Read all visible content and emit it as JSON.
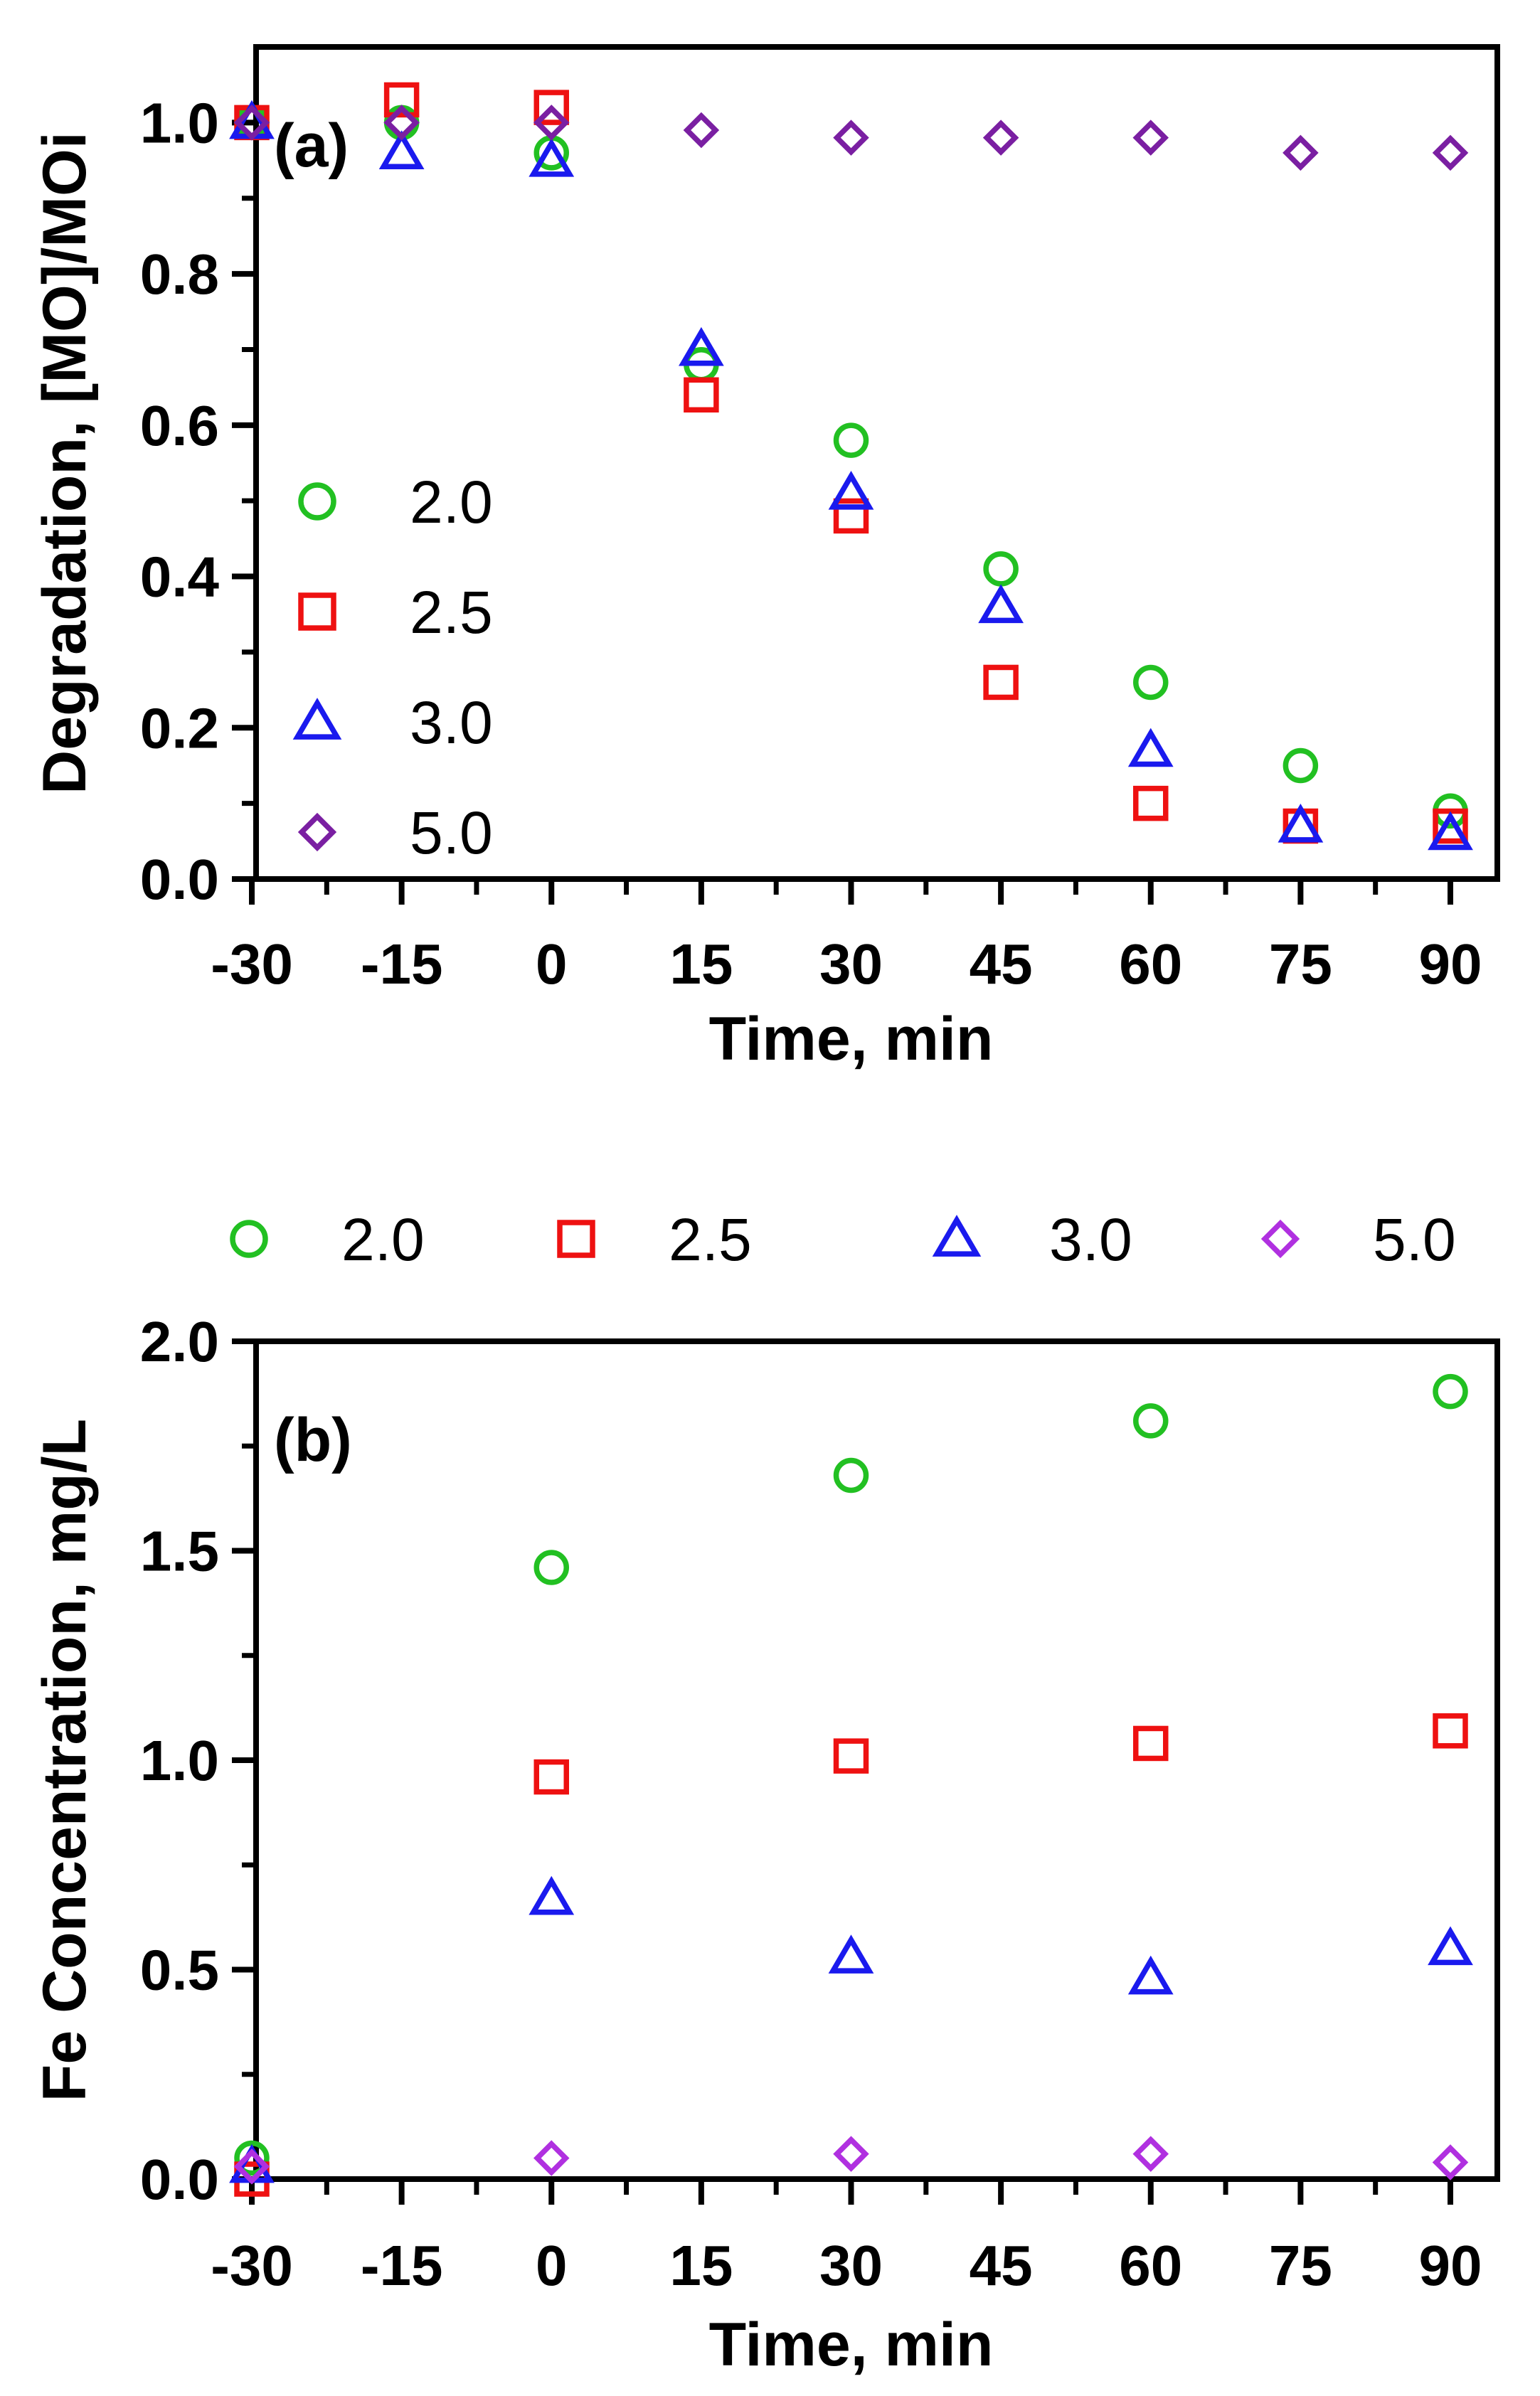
{
  "chart_data": [
    {
      "type": "scatter",
      "panel_label": "(a)",
      "title": "",
      "xlabel": "Time, min",
      "ylabel": "Degradation, [MO]/MOi",
      "xlim": [
        -30,
        90
      ],
      "ylim": [
        0,
        1.1
      ],
      "x_ticks": [
        -30,
        -15,
        0,
        15,
        30,
        45,
        60,
        75,
        90
      ],
      "x_tick_labels": [
        "-30",
        "-15",
        "0",
        "15",
        "30",
        "45",
        "60",
        "75",
        "90"
      ],
      "y_ticks": [
        0,
        0.2,
        0.4,
        0.6,
        0.8,
        1.0
      ],
      "y_tick_labels": [
        "0.0",
        "0.2",
        "0.4",
        "0.6",
        "0.8",
        "1.0"
      ],
      "legend": "inside-left",
      "grid": false,
      "series": [
        {
          "name": "2.0",
          "marker": "circle",
          "color": "#22c022",
          "x": [
            -30,
            -15,
            0,
            15,
            30,
            45,
            60,
            75,
            90
          ],
          "y": [
            1.0,
            1.0,
            0.96,
            0.68,
            0.58,
            0.41,
            0.26,
            0.15,
            0.09
          ]
        },
        {
          "name": "2.5",
          "marker": "square",
          "color": "#ee1111",
          "x": [
            -30,
            -15,
            0,
            15,
            30,
            45,
            60,
            75,
            90
          ],
          "y": [
            1.0,
            1.03,
            1.02,
            0.64,
            0.48,
            0.26,
            0.1,
            0.07,
            0.07
          ]
        },
        {
          "name": "3.0",
          "marker": "triangle",
          "color": "#1a1aee",
          "x": [
            -30,
            -15,
            0,
            15,
            30,
            45,
            60,
            75,
            90
          ],
          "y": [
            1.0,
            0.96,
            0.95,
            0.7,
            0.51,
            0.36,
            0.17,
            0.07,
            0.06
          ]
        },
        {
          "name": "5.0",
          "marker": "diamond",
          "color": "#7a1fa2",
          "x": [
            -30,
            -15,
            0,
            15,
            30,
            45,
            60,
            75,
            90
          ],
          "y": [
            1.0,
            1.0,
            1.0,
            0.99,
            0.98,
            0.98,
            0.98,
            0.96,
            0.96
          ]
        }
      ]
    },
    {
      "type": "scatter",
      "panel_label": "(b)",
      "title": "",
      "xlabel": "Time, min",
      "ylabel": "Fe Concentration, mg/L",
      "xlim": [
        -30,
        90
      ],
      "ylim": [
        0,
        2.0
      ],
      "x_ticks": [
        -30,
        -15,
        0,
        15,
        30,
        45,
        60,
        75,
        90
      ],
      "x_tick_labels": [
        "-30",
        "-15",
        "0",
        "15",
        "30",
        "45",
        "60",
        "75",
        "90"
      ],
      "y_ticks": [
        0,
        0.5,
        1.0,
        1.5,
        2.0
      ],
      "y_tick_labels": [
        "0.0",
        "0.5",
        "1.0",
        "1.5",
        "2.0"
      ],
      "legend": "top",
      "grid": false,
      "series": [
        {
          "name": "2.0",
          "marker": "circle",
          "color": "#22c022",
          "x": [
            -30,
            0,
            30,
            60,
            90
          ],
          "y": [
            0.05,
            1.46,
            1.68,
            1.81,
            1.88
          ]
        },
        {
          "name": "2.5",
          "marker": "square",
          "color": "#ee1111",
          "x": [
            -30,
            0,
            30,
            60,
            90
          ],
          "y": [
            0.0,
            0.96,
            1.01,
            1.04,
            1.07
          ]
        },
        {
          "name": "3.0",
          "marker": "triangle",
          "color": "#1a1aee",
          "x": [
            -30,
            0,
            30,
            60,
            90
          ],
          "y": [
            0.03,
            0.67,
            0.53,
            0.48,
            0.55
          ]
        },
        {
          "name": "5.0",
          "marker": "diamond",
          "color": "#b030e0",
          "x": [
            -30,
            0,
            30,
            60,
            90
          ],
          "y": [
            0.03,
            0.05,
            0.06,
            0.06,
            0.04
          ]
        }
      ]
    }
  ]
}
